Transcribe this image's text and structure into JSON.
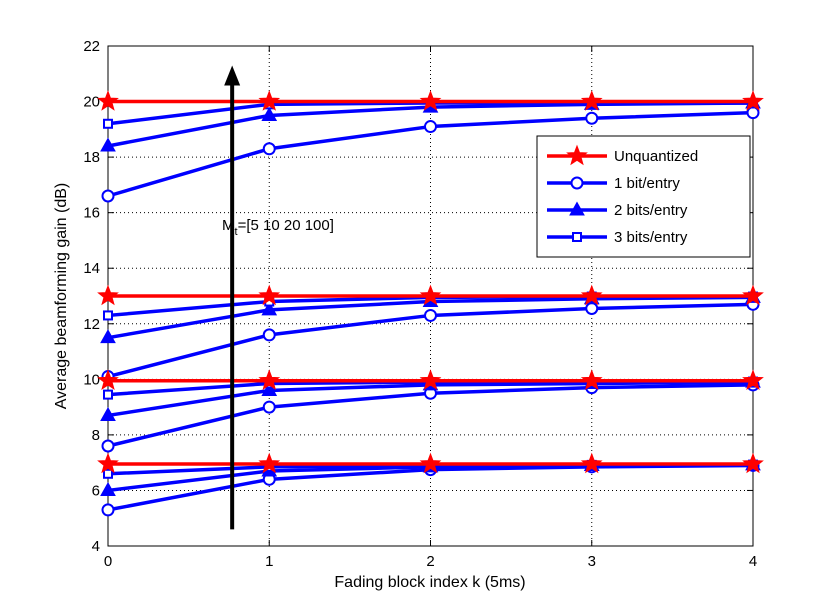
{
  "chart_data": {
    "type": "line",
    "title": "",
    "xlabel": "Fading block index k (5ms)",
    "ylabel": "Average beamforming gain (dB)",
    "xlim": [
      0,
      4
    ],
    "ylim": [
      4,
      22
    ],
    "xticks": [
      0,
      1,
      2,
      3,
      4
    ],
    "yticks": [
      4,
      6,
      8,
      10,
      12,
      14,
      16,
      18,
      20,
      22
    ],
    "grid": true,
    "x": [
      0,
      1,
      2,
      3,
      4
    ],
    "series_styles": [
      {
        "name": "Unquantized",
        "color": "#ff0000",
        "marker": "star"
      },
      {
        "name": "1 bit/entry",
        "color": "#0000ff",
        "marker": "circle"
      },
      {
        "name": "2 bits/entry",
        "color": "#0000ff",
        "marker": "triangle"
      },
      {
        "name": "3 bits/entry",
        "color": "#0000ff",
        "marker": "square"
      }
    ],
    "groups": [
      {
        "Mt": 100,
        "series": [
          {
            "name": "Unquantized",
            "values": [
              20.0,
              20.0,
              20.0,
              20.0,
              20.0
            ]
          },
          {
            "name": "1 bit/entry",
            "values": [
              16.6,
              18.3,
              19.1,
              19.4,
              19.6
            ]
          },
          {
            "name": "2 bits/entry",
            "values": [
              18.4,
              19.5,
              19.8,
              19.9,
              19.95
            ]
          },
          {
            "name": "3 bits/entry",
            "values": [
              19.2,
              19.9,
              19.95,
              19.95,
              19.95
            ]
          }
        ]
      },
      {
        "Mt": 20,
        "series": [
          {
            "name": "Unquantized",
            "values": [
              13.0,
              13.0,
              13.0,
              13.0,
              13.0
            ]
          },
          {
            "name": "1 bit/entry",
            "values": [
              10.1,
              11.6,
              12.3,
              12.55,
              12.7
            ]
          },
          {
            "name": "2 bits/entry",
            "values": [
              11.5,
              12.5,
              12.8,
              12.9,
              12.95
            ]
          },
          {
            "name": "3 bits/entry",
            "values": [
              12.3,
              12.8,
              12.95,
              12.98,
              12.98
            ]
          }
        ]
      },
      {
        "Mt": 10,
        "series": [
          {
            "name": "Unquantized",
            "values": [
              9.95,
              9.95,
              9.95,
              9.95,
              9.95
            ]
          },
          {
            "name": "1 bit/entry",
            "values": [
              7.6,
              9.0,
              9.5,
              9.7,
              9.8
            ]
          },
          {
            "name": "2 bits/entry",
            "values": [
              8.7,
              9.6,
              9.8,
              9.85,
              9.9
            ]
          },
          {
            "name": "3 bits/entry",
            "values": [
              9.45,
              9.85,
              9.9,
              9.9,
              9.92
            ]
          }
        ]
      },
      {
        "Mt": 5,
        "series": [
          {
            "name": "Unquantized",
            "values": [
              6.95,
              6.95,
              6.95,
              6.95,
              6.95
            ]
          },
          {
            "name": "1 bit/entry",
            "values": [
              5.3,
              6.4,
              6.75,
              6.85,
              6.9
            ]
          },
          {
            "name": "2 bits/entry",
            "values": [
              6.0,
              6.7,
              6.85,
              6.9,
              6.92
            ]
          },
          {
            "name": "3 bits/entry",
            "values": [
              6.6,
              6.85,
              6.9,
              6.92,
              6.93
            ]
          }
        ]
      }
    ],
    "legend": {
      "position": "center-right",
      "entries": [
        "Unquantized",
        "1 bit/entry",
        "2 bits/entry",
        "3 bits/entry"
      ]
    },
    "annotation": {
      "text_main": "M",
      "text_sub": "t",
      "text_rest": "=[5 10 20 100]",
      "arrow_x": 0.77,
      "arrow_from_y": 4.6,
      "arrow_to_y": 21.3
    }
  }
}
